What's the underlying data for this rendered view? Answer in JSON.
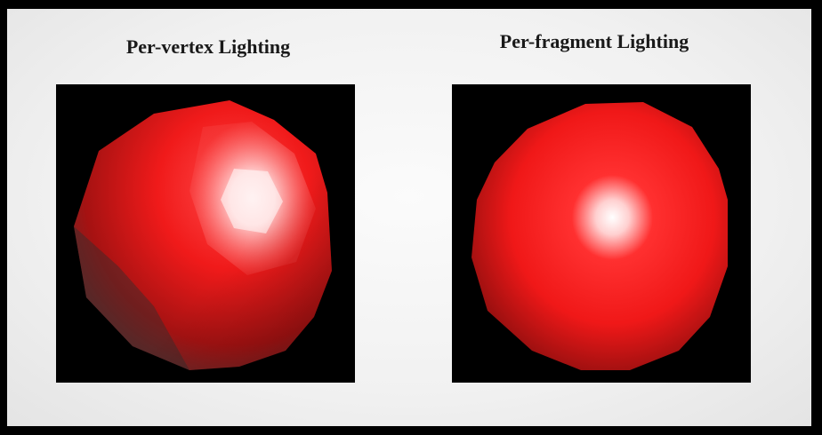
{
  "panels": {
    "left": {
      "title": "Per-vertex Lighting"
    },
    "right": {
      "title": "Per-fragment Lighting"
    }
  },
  "colors": {
    "background": "#f2f2f2",
    "viewport": "#000000",
    "sphere_base": "#ff2020",
    "specular": "#ffffff"
  }
}
